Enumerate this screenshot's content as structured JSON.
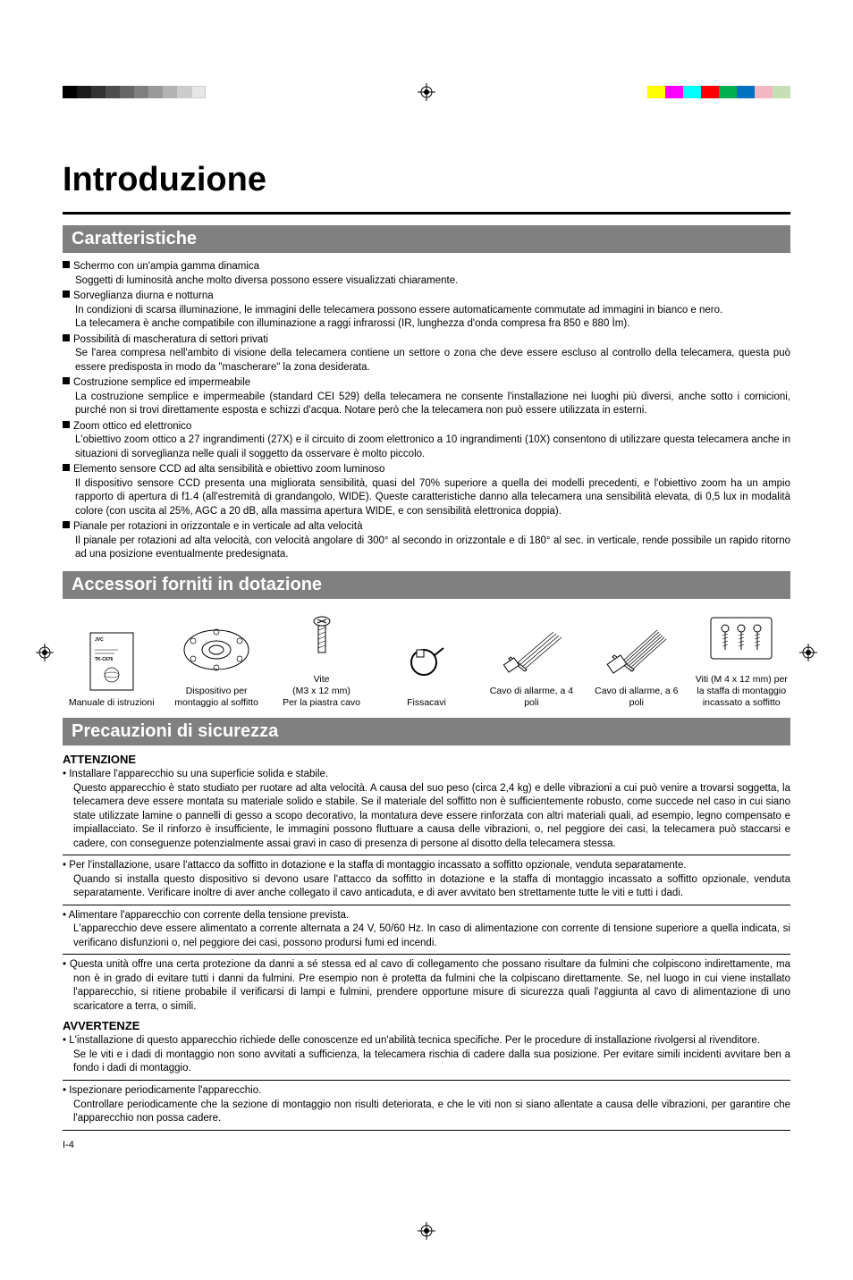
{
  "colorbars": {
    "left": [
      "#000000",
      "#1a1a1a",
      "#333333",
      "#4d4d4d",
      "#666666",
      "#808080",
      "#999999",
      "#b3b3b3",
      "#cccccc",
      "#e6e6e6",
      "#ffffff",
      "#ffffff"
    ],
    "right": [
      "#ffff00",
      "#ff00ff",
      "#00ffff",
      "#ff0000",
      "#00b050",
      "#0070c0",
      "#f4b6c2",
      "#c5e0b4"
    ]
  },
  "title": "Introduzione",
  "sections": {
    "caratteristiche": {
      "heading": "Caratteristiche",
      "items": [
        {
          "title": "Schermo con un'ampia gamma dinamica",
          "body": "Soggetti di luminosità anche molto diversa possono essere visualizzati chiaramente."
        },
        {
          "title": "Sorveglianza diurna e notturna",
          "body": "In condizioni di scarsa illuminazione, le immagini delle telecamera possono essere automaticamente commutate ad immagini in bianco e nero.\nLa telecamera è anche compatibile con illuminazione a raggi infrarossi (IR, lunghezza d'onda compresa fra 850 e 880 Ìm)."
        },
        {
          "title": "Possibilità di mascheratura di settori privati",
          "body": "Se l'area compresa nell'ambito di visione della telecamera contiene un settore o zona che deve essere escluso al controllo della telecamera, questa può essere predisposta in modo da \"mascherare\" la zona desiderata."
        },
        {
          "title": "Costruzione semplice ed impermeabile",
          "body": "La costruzione semplice e impermeabile (standard CEI 529) della telecamera ne consente l'installazione nei luoghi più diversi, anche sotto i cornicioni, purché non si trovi direttamente esposta e schizzi d'acqua. Notare però che la telecamera non può essere utilizzata in esterni."
        },
        {
          "title": "Zoom ottico ed elettronico",
          "body": "L'obiettivo zoom ottico a 27 ingrandimenti (27X) e il circuito di zoom elettronico a 10 ingrandimenti (10X) consentono di utilizzare questa telecamera anche in situazioni di sorveglianza nelle quali il soggetto da osservare è molto piccolo."
        },
        {
          "title": "Elemento sensore CCD ad alta sensibilità e obiettivo zoom luminoso",
          "body": "Il dispositivo sensore CCD presenta una migliorata sensibilità, quasi del 70% superiore a quella dei modelli precedenti, e l'obiettivo zoom ha un ampio rapporto di apertura di f1.4 (all'estremità di grandangolo, WIDE). Queste caratteristiche danno alla telecamera una sensibilità elevata, di 0,5 lux in modalità colore (con uscita al 25%, AGC a 20 dB, alla massima apertura WIDE, e con sensibilità elettronica doppia)."
        },
        {
          "title": "Pianale per rotazioni in orizzontale e in verticale ad alta velocità",
          "body": "Il pianale per rotazioni ad alta velocità, con velocità angolare di 300° al secondo in orizzontale e di 180° al sec. in verticale, rende possibile un rapido ritorno ad una posizione eventualmente predesignata."
        }
      ]
    },
    "accessori": {
      "heading": "Accessori forniti in dotazione",
      "items": [
        {
          "label": "Manuale di istruzioni",
          "sub": ""
        },
        {
          "label": "Dispositivo per montaggio al soffitto",
          "sub": ""
        },
        {
          "label": "Vite",
          "sub": "(M3 x 12 mm)\nPer la piastra cavo"
        },
        {
          "label": "Fissacavi",
          "sub": ""
        },
        {
          "label": "Cavo di allarme, a 4 poli",
          "sub": ""
        },
        {
          "label": "Cavo di allarme, a 6 poli",
          "sub": ""
        },
        {
          "label": "Viti (M 4 x 12 mm) per la staffa di montaggio incassato a soffitto",
          "sub": ""
        }
      ]
    },
    "precauzioni": {
      "heading": "Precauzioni di sicurezza",
      "attenzione": {
        "label": "ATTENZIONE",
        "items": [
          {
            "lead": "Installare l'apparecchio su una superficie solida e stabile.",
            "body": "Questo apparecchio è stato studiato per ruotare ad alta velocità. A causa del suo peso (circa 2,4 kg) e delle vibrazioni a cui può venire a trovarsi soggetta, la telecamera deve essere montata su materiale solido e stabile. Se il materiale del soffitto non è sufficientemente robusto, come succede nel caso in cui siano state utilizzate lamine o pannelli di gesso a scopo decorativo, la montatura deve essere rinforzata con altri materiali quali, ad esempio, legno compensato e impiallacciato. Se il rinforzo è insufficiente, le immagini possono fluttuare a causa delle vibrazioni, o, nel peggiore dei casi, la telecamera può staccarsi e cadere, con conseguenze potenzialmente assai gravi in caso di presenza di persone al disotto della telecamera stessa."
          },
          {
            "lead": "Per l'installazione, usare l'attacco da soffitto in dotazione e la staffa di montaggio incassato a soffitto opzionale, venduta separatamente.",
            "body": "Quando si installa questo dispositivo si devono usare l'attacco da soffitto in dotazione e la staffa di montaggio incassato a soffitto opzionale, venduta separatamente. Verificare inoltre di aver anche collegato il cavo anticaduta, e di aver avvitato ben strettamente tutte le viti e tutti i dadi."
          },
          {
            "lead": "Alimentare l'apparecchio con corrente della tensione prevista.",
            "body": "L'apparecchio deve essere alimentato a corrente alternata a 24 V, 50/60 Hz. In caso di alimentazione con corrente di tensione superiore a quella indicata, si verificano disfunzioni o, nel peggiore dei casi, possono prodursi fumi ed incendi."
          },
          {
            "lead": "",
            "body": "Questa unità offre una certa protezione da danni a sé stessa ed al cavo di collegamento che possano risultare da fulmini che colpiscono indirettamente, ma non è in grado di evitare tutti i danni da fulmini. Pre esempio non è protetta da fulmini che la colpiscano direttamente. Se, nel luogo in cui viene installato l'apparecchio, si ritiene probabile il verificarsi di lampi e fulmini, prendere opportune misure di sicurezza quali l'aggiunta al cavo di alimentazione di uno scaricatore a terra, o simili."
          }
        ]
      },
      "avvertenze": {
        "label": "AVVERTENZE",
        "items": [
          {
            "lead": "",
            "body": "L'installazione di questo apparecchio richiede delle conoscenze ed un'abilità tecnica specifiche. Per le procedure di installazione rivolgersi al rivenditore.",
            "body2": "Se le viti e i dadi di montaggio non sono avvitati a sufficienza, la telecamera rischia di cadere dalla sua posizione. Per evitare simili incidenti avvitare ben a fondo i dadi di montaggio."
          },
          {
            "lead": "Ispezionare periodicamente l'apparecchio.",
            "body": "Controllare periodicamente che la sezione di montaggio non risulti deteriorata, e che le viti non si siano allentate a causa delle vibrazioni, per garantire che l'apparecchio non possa cadere."
          }
        ]
      }
    }
  },
  "pagenum": "I-4"
}
